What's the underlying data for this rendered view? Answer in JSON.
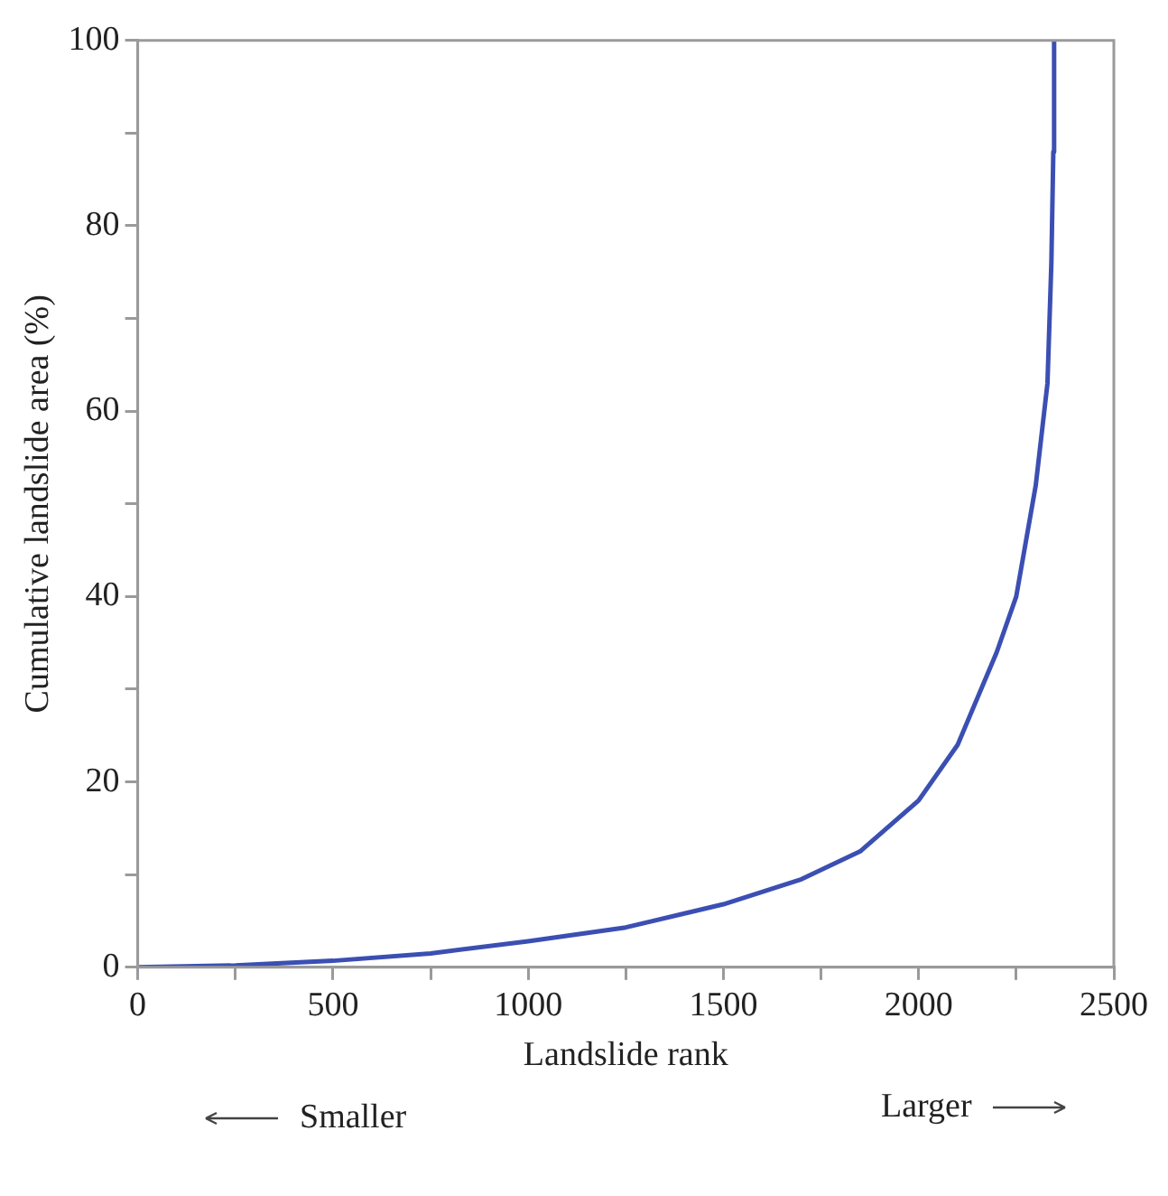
{
  "chart_data": {
    "type": "line",
    "xlabel": "Landslide rank",
    "ylabel": "Cumulative landslide area (%)",
    "x": [
      0,
      250,
      500,
      750,
      1000,
      1250,
      1500,
      1700,
      1850,
      2000,
      2100,
      2200,
      2250,
      2300,
      2330,
      2340,
      2345,
      2347
    ],
    "series": [
      {
        "color": "#3b4fb3",
        "values": [
          0,
          0.2,
          0.7,
          1.5,
          2.8,
          4.3,
          6.8,
          9.5,
          12.5,
          18,
          24,
          34,
          40,
          52,
          63,
          76,
          88,
          100
        ]
      }
    ],
    "xlim": [
      0,
      2500
    ],
    "xticks": [
      0,
      {
        "value": 250,
        "label": null
      },
      500,
      {
        "value": 750,
        "label": null
      },
      1000,
      {
        "value": 1250,
        "label": null
      },
      1500,
      {
        "value": 1750,
        "label": null
      },
      2000,
      {
        "value": 2250,
        "label": null
      },
      2500
    ],
    "ylim": [
      0,
      100
    ],
    "yticks": [
      0,
      {
        "value": 10,
        "label": null
      },
      20,
      {
        "value": 30,
        "label": null
      },
      40,
      {
        "value": 50,
        "label": null
      },
      60,
      {
        "value": 70,
        "label": null
      },
      80,
      {
        "value": 90,
        "label": null
      },
      100
    ],
    "annotations": [
      "Smaller",
      "Larger"
    ]
  }
}
